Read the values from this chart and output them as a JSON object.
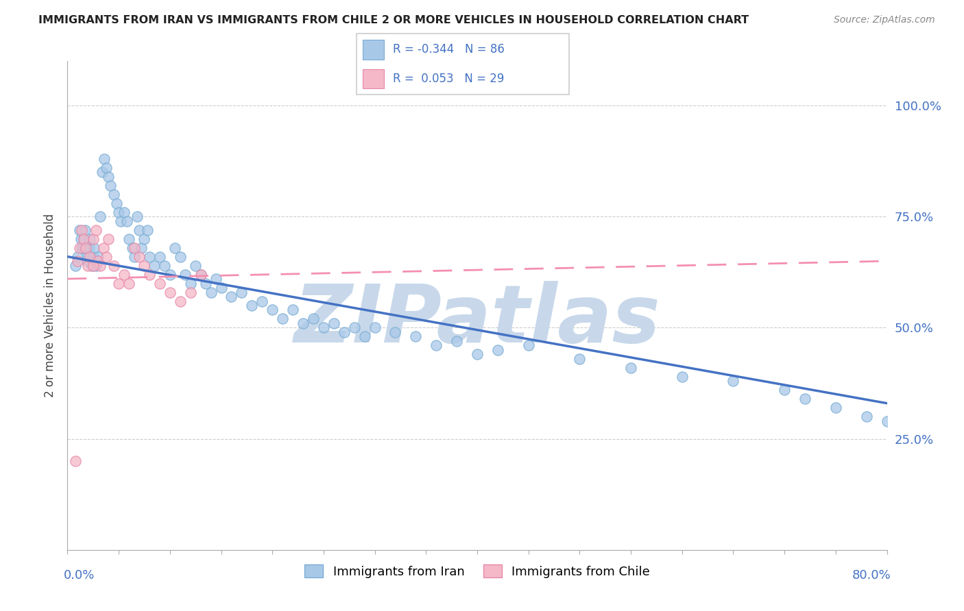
{
  "title": "IMMIGRANTS FROM IRAN VS IMMIGRANTS FROM CHILE 2 OR MORE VEHICLES IN HOUSEHOLD CORRELATION CHART",
  "source": "Source: ZipAtlas.com",
  "xmin": 0.0,
  "xmax": 0.8,
  "ymin": 0.0,
  "ymax": 1.1,
  "iran_color": "#a8c8e8",
  "iran_color_edge": "#7aadd4",
  "chile_color": "#f4b8c8",
  "chile_color_edge": "#e888a8",
  "iran_line_color": "#4472c4",
  "chile_line_color": "#f48fb1",
  "iran_R": -0.344,
  "iran_N": 86,
  "chile_R": 0.053,
  "chile_N": 29,
  "watermark": "ZIPatlas",
  "watermark_color": "#c8d8ea",
  "iran_x": [
    0.008,
    0.01,
    0.012,
    0.013,
    0.014,
    0.015,
    0.016,
    0.017,
    0.018,
    0.019,
    0.02,
    0.021,
    0.022,
    0.023,
    0.024,
    0.025,
    0.026,
    0.027,
    0.028,
    0.03,
    0.032,
    0.034,
    0.036,
    0.038,
    0.04,
    0.042,
    0.045,
    0.048,
    0.05,
    0.052,
    0.055,
    0.058,
    0.06,
    0.063,
    0.065,
    0.068,
    0.07,
    0.072,
    0.075,
    0.078,
    0.08,
    0.085,
    0.09,
    0.095,
    0.1,
    0.105,
    0.11,
    0.115,
    0.12,
    0.125,
    0.13,
    0.135,
    0.14,
    0.145,
    0.15,
    0.16,
    0.17,
    0.18,
    0.19,
    0.2,
    0.21,
    0.22,
    0.23,
    0.24,
    0.25,
    0.26,
    0.27,
    0.28,
    0.29,
    0.3,
    0.32,
    0.34,
    0.36,
    0.38,
    0.4,
    0.42,
    0.45,
    0.5,
    0.55,
    0.6,
    0.65,
    0.7,
    0.72,
    0.75,
    0.78,
    0.8
  ],
  "iran_y": [
    0.64,
    0.66,
    0.72,
    0.7,
    0.68,
    0.68,
    0.7,
    0.72,
    0.68,
    0.65,
    0.66,
    0.68,
    0.7,
    0.65,
    0.64,
    0.66,
    0.68,
    0.65,
    0.64,
    0.66,
    0.75,
    0.85,
    0.88,
    0.86,
    0.84,
    0.82,
    0.8,
    0.78,
    0.76,
    0.74,
    0.76,
    0.74,
    0.7,
    0.68,
    0.66,
    0.75,
    0.72,
    0.68,
    0.7,
    0.72,
    0.66,
    0.64,
    0.66,
    0.64,
    0.62,
    0.68,
    0.66,
    0.62,
    0.6,
    0.64,
    0.62,
    0.6,
    0.58,
    0.61,
    0.59,
    0.57,
    0.58,
    0.55,
    0.56,
    0.54,
    0.52,
    0.54,
    0.51,
    0.52,
    0.5,
    0.51,
    0.49,
    0.5,
    0.48,
    0.5,
    0.49,
    0.48,
    0.46,
    0.47,
    0.44,
    0.45,
    0.46,
    0.43,
    0.41,
    0.39,
    0.38,
    0.36,
    0.34,
    0.32,
    0.3,
    0.29
  ],
  "chile_x": [
    0.008,
    0.01,
    0.012,
    0.014,
    0.016,
    0.018,
    0.02,
    0.022,
    0.025,
    0.028,
    0.03,
    0.032,
    0.035,
    0.038,
    0.04,
    0.045,
    0.05,
    0.055,
    0.06,
    0.065,
    0.07,
    0.075,
    0.08,
    0.09,
    0.1,
    0.11,
    0.12,
    0.13,
    0.025
  ],
  "chile_y": [
    0.2,
    0.65,
    0.68,
    0.72,
    0.7,
    0.68,
    0.64,
    0.66,
    0.7,
    0.72,
    0.65,
    0.64,
    0.68,
    0.66,
    0.7,
    0.64,
    0.6,
    0.62,
    0.6,
    0.68,
    0.66,
    0.64,
    0.62,
    0.6,
    0.58,
    0.56,
    0.58,
    0.62,
    0.64
  ],
  "iran_line_x0": 0.0,
  "iran_line_x1": 0.8,
  "iran_line_y0": 0.66,
  "iran_line_y1": 0.33,
  "chile_line_x0": 0.0,
  "chile_line_x1": 0.8,
  "chile_line_y0": 0.61,
  "chile_line_y1": 0.65
}
